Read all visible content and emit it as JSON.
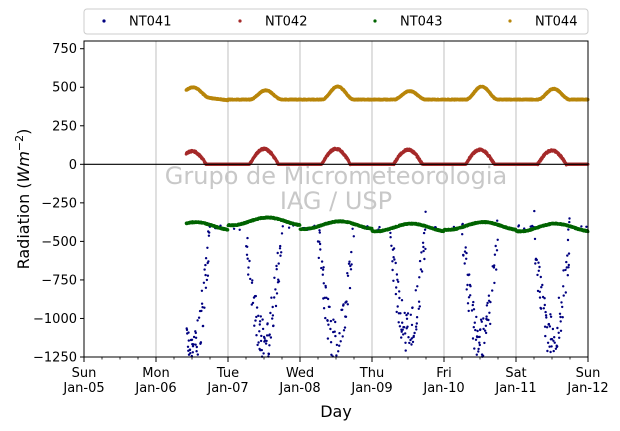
{
  "chart_data": {
    "type": "scatter",
    "xlabel": "Day",
    "ylabel_main": "Radiation (",
    "ylabel_unit": "Wm",
    "ylabel_exp": "−2",
    "ylabel_close": ")",
    "watermark": [
      "Grupo de Micrometeorologia",
      "IAG / USP"
    ],
    "xlim": [
      0,
      7
    ],
    "ylim": [
      -1250,
      800
    ],
    "yticks": [
      -1250,
      -1000,
      -750,
      -500,
      -250,
      0,
      250,
      500,
      750
    ],
    "ytick_labels": [
      "−1250",
      "−1000",
      "−750",
      "−500",
      "−250",
      "0",
      "250",
      "500",
      "750"
    ],
    "xticks": [
      {
        "day": "Sun",
        "date": "Jan-05"
      },
      {
        "day": "Mon",
        "date": "Jan-06"
      },
      {
        "day": "Tue",
        "date": "Jan-07"
      },
      {
        "day": "Wed",
        "date": "Jan-08"
      },
      {
        "day": "Thu",
        "date": "Jan-09"
      },
      {
        "day": "Fri",
        "date": "Jan-10"
      },
      {
        "day": "Sat",
        "date": "Jan-11"
      },
      {
        "day": "Sun",
        "date": "Jan-12"
      }
    ],
    "grid": "vertical",
    "zero_line": true,
    "legend_placement": "top",
    "data_start_day": 1.42,
    "series": [
      {
        "name": "NT041",
        "color": "#000080",
        "night_value": -410,
        "daily_minimum": [
          -1230,
          -1150,
          -1160,
          -1100,
          -1140,
          -1120
        ],
        "daytime_window": [
          0.25,
          0.75
        ]
      },
      {
        "name": "NT042",
        "color": "#a52a2a",
        "night_value": 0,
        "daily_peak": [
          85,
          100,
          100,
          95,
          95,
          90
        ],
        "daytime_window": [
          0.3,
          0.7
        ]
      },
      {
        "name": "NT043",
        "color": "#006400",
        "daily_mean": [
          -400,
          -370,
          -395,
          -410,
          -400,
          -410
        ],
        "daily_swing": 25
      },
      {
        "name": "NT044",
        "color": "#b8860b",
        "night_value": 420,
        "daily_peak": [
          475,
          480,
          505,
          475,
          505,
          490
        ],
        "start_value": 450
      }
    ]
  }
}
